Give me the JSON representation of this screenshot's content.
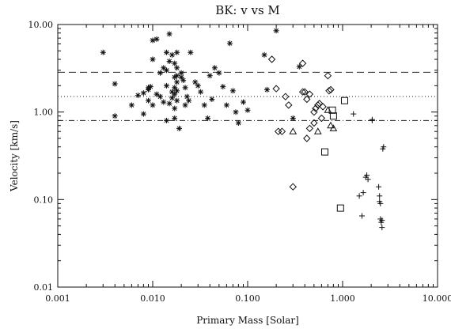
{
  "chart_data": {
    "type": "scatter",
    "title": "BK: v vs M",
    "xlabel": "Primary Mass [Solar]",
    "ylabel": "Velocity [km/s]",
    "xscale": "log",
    "yscale": "log",
    "xlim": [
      0.001,
      10.0
    ],
    "ylim": [
      0.01,
      10.0
    ],
    "x_tick_labels": [
      "0.001",
      "0.010",
      "0.100",
      "1.000",
      "10.000"
    ],
    "y_tick_labels": [
      "0.01",
      "0.10",
      "1.00",
      "10.00"
    ],
    "x_ticks": [
      0.001,
      0.01,
      0.1,
      1.0,
      10.0
    ],
    "y_ticks": [
      0.01,
      0.1,
      1.0,
      10.0
    ],
    "grid": false,
    "reference_lines": [
      {
        "style": "dashed",
        "y": 2.85
      },
      {
        "style": "dotted",
        "y": 1.5
      },
      {
        "style": "dashdot",
        "y": 0.8
      }
    ],
    "series": [
      {
        "marker": "asterisk",
        "points": [
          [
            0.003,
            4.8
          ],
          [
            0.004,
            2.1
          ],
          [
            0.004,
            0.9
          ],
          [
            0.006,
            1.2
          ],
          [
            0.007,
            1.55
          ],
          [
            0.008,
            1.65
          ],
          [
            0.008,
            0.95
          ],
          [
            0.009,
            1.9
          ],
          [
            0.009,
            1.8
          ],
          [
            0.009,
            1.35
          ],
          [
            0.0095,
            1.95
          ],
          [
            0.01,
            6.6
          ],
          [
            0.01,
            4.0
          ],
          [
            0.01,
            1.2
          ],
          [
            0.011,
            6.8
          ],
          [
            0.011,
            1.6
          ],
          [
            0.012,
            2.8
          ],
          [
            0.012,
            1.5
          ],
          [
            0.013,
            1.3
          ],
          [
            0.013,
            3.2
          ],
          [
            0.014,
            4.8
          ],
          [
            0.014,
            3.0
          ],
          [
            0.014,
            2.0
          ],
          [
            0.014,
            0.8
          ],
          [
            0.015,
            7.8
          ],
          [
            0.015,
            3.8
          ],
          [
            0.015,
            1.25
          ],
          [
            0.016,
            4.5
          ],
          [
            0.016,
            1.7
          ],
          [
            0.016,
            1.45
          ],
          [
            0.017,
            3.6
          ],
          [
            0.017,
            2.5
          ],
          [
            0.017,
            1.9
          ],
          [
            0.017,
            1.6
          ],
          [
            0.017,
            1.1
          ],
          [
            0.017,
            0.85
          ],
          [
            0.018,
            4.8
          ],
          [
            0.018,
            3.2
          ],
          [
            0.018,
            2.6
          ],
          [
            0.018,
            2.2
          ],
          [
            0.018,
            1.75
          ],
          [
            0.018,
            1.35
          ],
          [
            0.019,
            0.65
          ],
          [
            0.02,
            2.8
          ],
          [
            0.02,
            2.5
          ],
          [
            0.021,
            2.3
          ],
          [
            0.022,
            1.9
          ],
          [
            0.022,
            1.2
          ],
          [
            0.023,
            1.5
          ],
          [
            0.024,
            1.35
          ],
          [
            0.025,
            4.8
          ],
          [
            0.028,
            2.2
          ],
          [
            0.03,
            2.0
          ],
          [
            0.032,
            1.7
          ],
          [
            0.035,
            1.2
          ],
          [
            0.038,
            0.85
          ],
          [
            0.04,
            2.6
          ],
          [
            0.042,
            1.4
          ],
          [
            0.045,
            3.2
          ],
          [
            0.05,
            2.8
          ],
          [
            0.055,
            1.95
          ],
          [
            0.06,
            1.2
          ],
          [
            0.065,
            6.1
          ],
          [
            0.07,
            1.75
          ],
          [
            0.075,
            1.0
          ],
          [
            0.08,
            0.75
          ],
          [
            0.09,
            1.3
          ],
          [
            0.1,
            1.05
          ],
          [
            0.15,
            4.5
          ],
          [
            0.16,
            1.8
          ],
          [
            0.2,
            8.5
          ],
          [
            0.3,
            0.85
          ],
          [
            0.35,
            3.3
          ]
        ]
      },
      {
        "marker": "diamond",
        "points": [
          [
            0.18,
            4.0
          ],
          [
            0.2,
            1.85
          ],
          [
            0.21,
            0.6
          ],
          [
            0.23,
            0.6
          ],
          [
            0.25,
            1.5
          ],
          [
            0.27,
            1.2
          ],
          [
            0.3,
            0.14
          ],
          [
            0.38,
            3.6
          ],
          [
            0.38,
            1.7
          ],
          [
            0.4,
            1.7
          ],
          [
            0.42,
            1.4
          ],
          [
            0.42,
            0.5
          ],
          [
            0.45,
            1.6
          ],
          [
            0.45,
            0.65
          ],
          [
            0.5,
            1.0
          ],
          [
            0.5,
            0.75
          ],
          [
            0.52,
            1.1
          ],
          [
            0.55,
            1.2
          ],
          [
            0.57,
            1.25
          ],
          [
            0.6,
            0.85
          ],
          [
            0.62,
            1.15
          ],
          [
            0.7,
            2.6
          ],
          [
            0.72,
            1.75
          ],
          [
            0.75,
            1.8
          ]
        ]
      },
      {
        "marker": "triangle",
        "points": [
          [
            0.3,
            0.6
          ],
          [
            0.55,
            0.6
          ],
          [
            0.7,
            1.05
          ],
          [
            0.75,
            0.7
          ],
          [
            0.8,
            0.65
          ]
        ]
      },
      {
        "marker": "square",
        "points": [
          [
            0.65,
            0.35
          ],
          [
            0.78,
            1.05
          ],
          [
            0.8,
            0.9
          ],
          [
            0.95,
            0.08
          ],
          [
            1.05,
            1.35
          ]
        ]
      },
      {
        "marker": "plus",
        "points": [
          [
            1.3,
            0.95
          ],
          [
            1.5,
            0.11
          ],
          [
            1.6,
            0.065
          ],
          [
            1.65,
            0.12
          ],
          [
            1.75,
            0.18
          ],
          [
            1.8,
            0.19
          ],
          [
            1.85,
            0.17
          ],
          [
            2.05,
            0.8
          ],
          [
            2.05,
            0.82
          ],
          [
            2.4,
            0.14
          ],
          [
            2.45,
            0.11
          ],
          [
            2.45,
            0.095
          ],
          [
            2.5,
            0.09
          ],
          [
            2.5,
            0.06
          ],
          [
            2.55,
            0.055
          ],
          [
            2.6,
            0.058
          ],
          [
            2.6,
            0.048
          ],
          [
            2.65,
            0.38
          ],
          [
            2.7,
            0.4
          ]
        ]
      }
    ]
  }
}
